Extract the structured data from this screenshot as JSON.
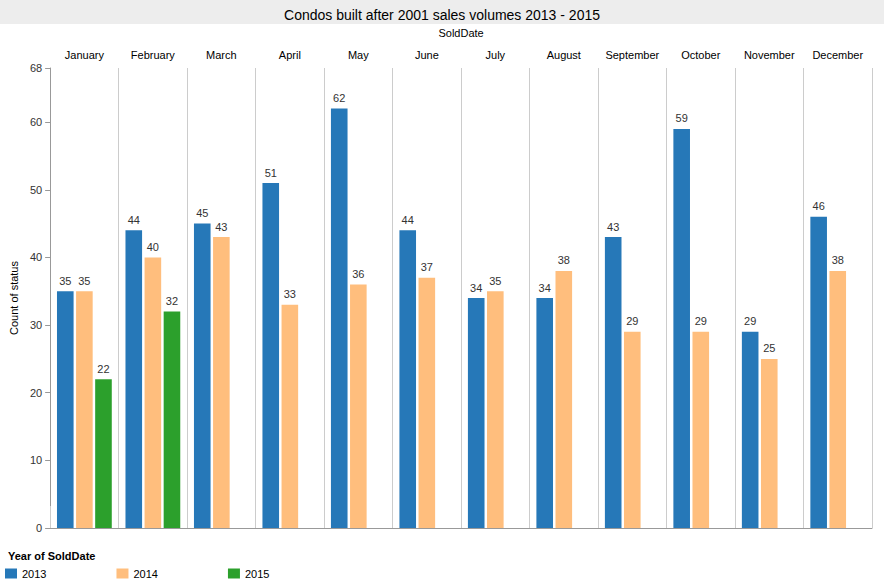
{
  "chart_data": {
    "type": "bar",
    "title": "Condos built after 2001 sales volumes 2013 - 2015",
    "x_label": "SoldDate",
    "y_label": "Count of status",
    "legend_title": "Year of SoldDate",
    "categories": [
      "January",
      "February",
      "March",
      "April",
      "May",
      "June",
      "July",
      "August",
      "September",
      "October",
      "November",
      "December"
    ],
    "series": [
      {
        "name": "2013",
        "color": "#2678b8",
        "values": [
          35,
          44,
          45,
          51,
          62,
          44,
          34,
          34,
          43,
          59,
          29,
          46
        ]
      },
      {
        "name": "2014",
        "color": "#ffbe7d",
        "values": [
          35,
          40,
          43,
          33,
          36,
          37,
          35,
          38,
          29,
          29,
          25,
          38
        ]
      },
      {
        "name": "2015",
        "color": "#2ca02c",
        "values": [
          22,
          32,
          null,
          null,
          null,
          null,
          null,
          null,
          null,
          null,
          null,
          null
        ]
      }
    ],
    "ylim": [
      0,
      68
    ],
    "yticks": [
      0,
      10,
      20,
      30,
      40,
      50,
      60
    ],
    "grid": false,
    "legend": "bottom-left",
    "data_labels": true
  }
}
